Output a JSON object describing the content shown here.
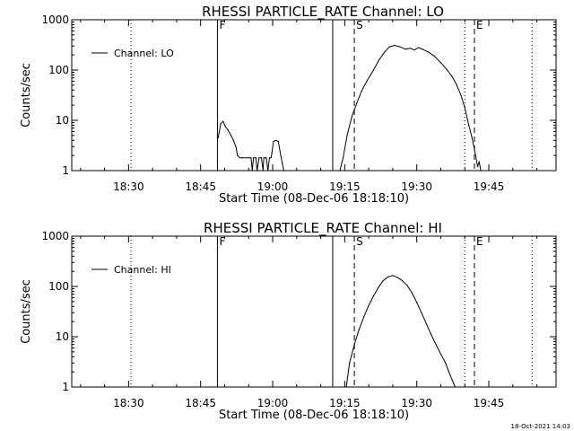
{
  "chart_data": [
    {
      "type": "line",
      "title": "RHESSI PARTICLE_RATE Channel: LO",
      "xlabel": "Start Time (08-Dec-06 18:18:10)",
      "ylabel": "Counts/sec",
      "yscale": "log",
      "ylim": [
        1,
        1000
      ],
      "xlim": [
        "18:18:10",
        "19:59:00"
      ],
      "x_ticks": [
        "18:30",
        "18:45",
        "19:00",
        "19:15",
        "19:30",
        "19:45"
      ],
      "y_ticks": [
        "1",
        "10",
        "100",
        "1000"
      ],
      "legend": {
        "position": "top-left",
        "entries": [
          "Channel: LO"
        ]
      },
      "markers": [
        {
          "time": "18:48:30",
          "style": "solid",
          "label": "F"
        },
        {
          "time": "19:12:30",
          "style": "solid",
          "label": ""
        },
        {
          "time": "19:17:00",
          "style": "dashed",
          "label": "S"
        },
        {
          "time": "19:42:00",
          "style": "dashed",
          "label": "E"
        },
        {
          "time": "18:30:30",
          "style": "dotted",
          "label": ""
        },
        {
          "time": "19:40:00",
          "style": "dotted",
          "label": ""
        },
        {
          "time": "19:54:00",
          "style": "dotted",
          "label": ""
        }
      ],
      "series": [
        {
          "name": "Channel: LO",
          "segments": [
            {
              "x": [
                "18:48:40",
                "18:49:10",
                "18:49:40",
                "18:50:10",
                "18:50:40",
                "18:51:20",
                "18:51:50",
                "18:52:20",
                "18:52:40",
                "18:53:10",
                "18:53:40",
                "18:55:00",
                "18:55:30",
                "18:55:45",
                "18:56:00",
                "18:56:30",
                "18:56:45",
                "18:57:10",
                "18:57:40",
                "18:58:00",
                "18:58:10",
                "18:58:40",
                "18:59:00",
                "18:59:20",
                "18:59:40",
                "18:59:50",
                "19:00:10",
                "19:00:40",
                "19:01:10",
                "19:01:40",
                "19:02:00",
                "19:02:20"
              ],
              "y": [
                4.5,
                8.5,
                9.5,
                7.5,
                6.5,
                5,
                4,
                3,
                2,
                1.8,
                1.8,
                1.8,
                1.8,
                1.0,
                1.8,
                1.8,
                1.0,
                1.8,
                1.8,
                1.0,
                1.8,
                1.8,
                1.0,
                1.8,
                1.8,
                2.2,
                3.8,
                4.0,
                3.8,
                2.0,
                1.4,
                1.0
              ]
            },
            {
              "x": [
                "19:14:00",
                "19:14:40",
                "19:15:30",
                "19:16:30",
                "19:17:30",
                "19:18:30",
                "19:19:40",
                "19:21:00",
                "19:22:10",
                "19:23:20",
                "19:24:20",
                "19:25:20",
                "19:26:30",
                "19:27:40",
                "19:28:40",
                "19:29:30",
                "19:30:20",
                "19:31:10",
                "19:32:20",
                "19:33:40",
                "19:35:00",
                "19:36:10",
                "19:37:20",
                "19:38:20",
                "19:39:10",
                "19:40:00",
                "19:40:50",
                "19:41:30",
                "19:42:10",
                "19:42:40",
                "19:43:00",
                "19:43:20"
              ],
              "y": [
                1.0,
                1.8,
                5,
                12,
                22,
                38,
                62,
                100,
                160,
                230,
                290,
                310,
                290,
                260,
                270,
                250,
                280,
                260,
                230,
                190,
                140,
                105,
                75,
                50,
                32,
                18,
                8,
                4.5,
                2.2,
                1.2,
                1.5,
                1.0
              ]
            }
          ]
        }
      ]
    },
    {
      "type": "line",
      "title": "RHESSI PARTICLE_RATE Channel: HI",
      "xlabel": "Start Time (08-Dec-06 18:18:10)",
      "ylabel": "Counts/sec",
      "yscale": "log",
      "ylim": [
        1,
        1000
      ],
      "xlim": [
        "18:18:10",
        "19:59:00"
      ],
      "x_ticks": [
        "18:30",
        "18:45",
        "19:00",
        "19:15",
        "19:30",
        "19:45"
      ],
      "y_ticks": [
        "1",
        "10",
        "100",
        "1000"
      ],
      "legend": {
        "position": "top-left",
        "entries": [
          "Channel: HI"
        ]
      },
      "markers": [
        {
          "time": "18:48:30",
          "style": "solid",
          "label": "F"
        },
        {
          "time": "19:12:30",
          "style": "solid",
          "label": ""
        },
        {
          "time": "19:17:00",
          "style": "dashed",
          "label": "S"
        },
        {
          "time": "19:42:00",
          "style": "dashed",
          "label": "E"
        },
        {
          "time": "18:30:30",
          "style": "dotted",
          "label": ""
        },
        {
          "time": "19:40:00",
          "style": "dotted",
          "label": ""
        },
        {
          "time": "19:54:00",
          "style": "dotted",
          "label": ""
        }
      ],
      "series": [
        {
          "name": "Channel: HI",
          "segments": [
            {
              "x": [
                "19:15:20",
                "19:16:00",
                "19:17:00",
                "19:18:00",
                "19:19:00",
                "19:20:00",
                "19:21:00",
                "19:22:00",
                "19:23:00",
                "19:24:00",
                "19:25:00",
                "19:26:00",
                "19:27:00",
                "19:28:00",
                "19:29:00",
                "19:30:00",
                "19:31:00",
                "19:32:00",
                "19:33:00",
                "19:34:00",
                "19:35:00",
                "19:36:00",
                "19:36:40",
                "19:37:20",
                "19:38:00"
              ],
              "y": [
                1.0,
                3,
                7,
                14,
                25,
                42,
                65,
                95,
                130,
                155,
                165,
                150,
                130,
                105,
                75,
                48,
                30,
                18,
                11,
                7,
                4.5,
                3,
                2,
                1.4,
                1.0
              ]
            }
          ]
        }
      ]
    }
  ],
  "timestamp": "18-Oct-2021 14:03"
}
